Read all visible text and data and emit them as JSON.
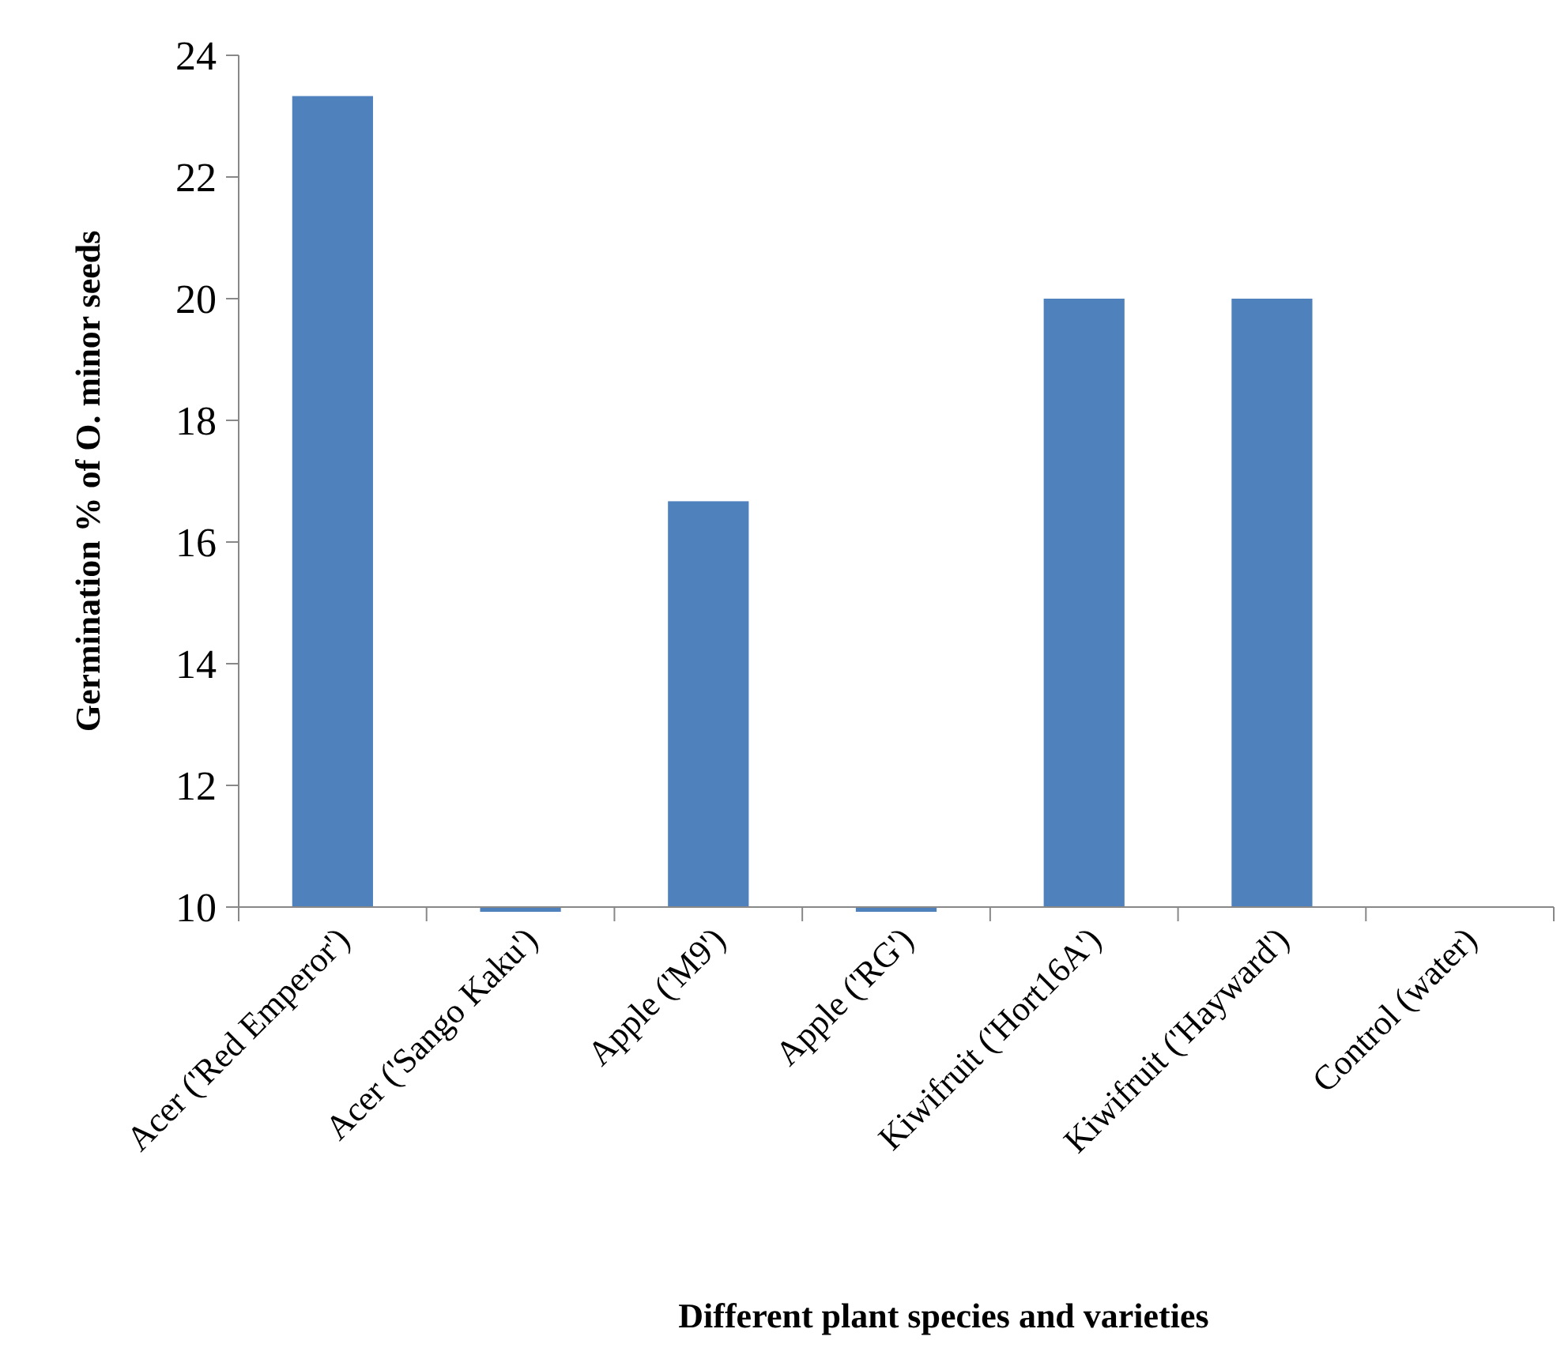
{
  "chart_data": {
    "type": "bar",
    "xlabel": "Different plant species and varieties",
    "ylabel": "Germination % of O. minor seeds",
    "categories": [
      "Acer ('Red Emperor')",
      "Acer ('Sango Kaku')",
      "Apple ('M9')",
      "Apple ('RG')",
      "Kiwifruit ('Hort16A')",
      "Kiwifruit ('Hayward')",
      "Control (water)"
    ],
    "values": [
      23.33,
      10,
      16.67,
      10,
      20,
      20,
      null
    ],
    "color": "#4f81bd",
    "ylim": [
      10,
      24
    ],
    "yticks": [
      10,
      12,
      14,
      16,
      18,
      20,
      22,
      24
    ],
    "grid": false
  }
}
